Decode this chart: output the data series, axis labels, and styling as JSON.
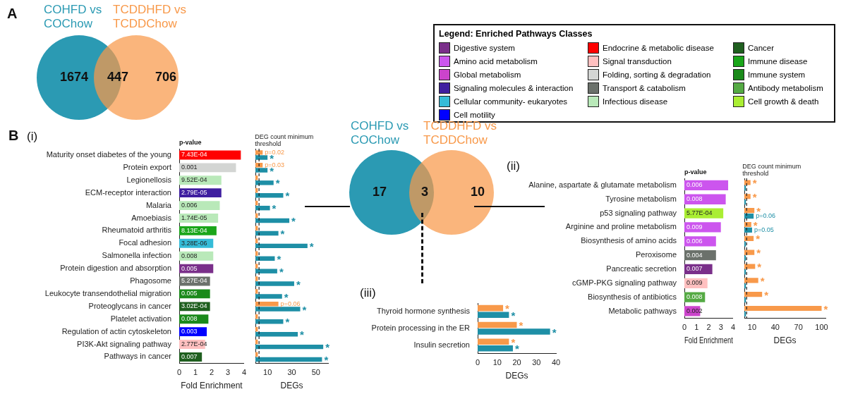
{
  "chart_data": [
    {
      "type": "other",
      "series": [
        {
          "name": "COHFD vs COChow",
          "color": "#2b9ab3"
        },
        {
          "name": "TCDDHFD vs TCDDChow",
          "color": "#f8994a"
        }
      ],
      "annotations": [
        "A",
        "1674",
        "447",
        "706"
      ]
    },
    {
      "type": "other",
      "title": "Legend: Enriched Pathways Classes",
      "categories": [
        "Digestive system",
        "Amino acid metabolism",
        "Global metabolism",
        "Signaling molecules & interaction",
        "Cellular community- eukaryotes",
        "Cell motility",
        "Endocrine & metabolic disease",
        "Signal transduction",
        "Folding, sorting & degradation",
        "Transport & catabolism",
        "Infectious disease",
        "Cancer",
        "Immune disease",
        "Immune system",
        "Antibody metabolism",
        "Cell growth & death"
      ],
      "colors": [
        "#7a2f8a",
        "#cc55ee",
        "#cc44cc",
        "#3f1fa0",
        "#35bcd8",
        "#0000ff",
        "#ff0000",
        "#ffc0c0",
        "#d3d5d3",
        "#6b716b",
        "#b9e9b9",
        "#1f5f1f",
        "#1aa61a",
        "#1a8a1a",
        "#55aa44",
        "#aaee33"
      ]
    },
    {
      "type": "bar",
      "orientation": "horizontal",
      "categories": [
        "Maturity onset diabetes of the young",
        "Protein export",
        "Legionellosis",
        "ECM-receptor interaction",
        "Malaria",
        "Amoebiasis",
        "Rheumatoid arthritis",
        "Focal adhesion",
        "Salmonella infection",
        "Protein digestion and absorption",
        "Phagosome",
        "Leukocyte transendothelial migration",
        "Proteoglycans in cancer",
        "Platelet activation",
        "Regulation of actin cytoskeleton",
        "PI3K-Akt signaling pathway",
        "Pathways in cancer"
      ],
      "values": [
        3.8,
        3.5,
        2.6,
        2.6,
        2.5,
        2.4,
        2.3,
        2.1,
        2.1,
        2.1,
        1.9,
        1.9,
        1.9,
        1.8,
        1.7,
        1.6,
        1.4
      ],
      "colors": [
        "#ff0000",
        "#d3d5d3",
        "#b9e9b9",
        "#3f1fa0",
        "#b9e9b9",
        "#b9e9b9",
        "#1aa61a",
        "#35bcd8",
        "#b9e9b9",
        "#7a2f8a",
        "#6b716b",
        "#1a8a1a",
        "#1f5f1f",
        "#1a8a1a",
        "#0000ff",
        "#ffc0c0",
        "#1f5f1f"
      ],
      "xlim": [
        0,
        4
      ],
      "xticks": [
        0,
        1,
        2,
        3,
        4
      ],
      "xlabel": "Fold Enrichment",
      "annotations": [
        "B",
        "(i)",
        "p-value",
        {
          "text": "7.43E-04",
          "x": 0,
          "y": "Maturity onset diabetes of the young"
        },
        {
          "text": "0.001",
          "x": 0,
          "y": "Protein export"
        },
        {
          "text": "9.52E-04",
          "x": 0,
          "y": "Legionellosis"
        },
        {
          "text": "2.79E-05",
          "x": 0,
          "y": "ECM-receptor interaction"
        },
        {
          "text": "0.006",
          "x": 0,
          "y": "Malaria"
        },
        {
          "text": "1.74E-05",
          "x": 0,
          "y": "Amoebiasis"
        },
        {
          "text": "8.13E-04",
          "x": 0,
          "y": "Rheumatoid arthritis"
        },
        {
          "text": "3.28E-06",
          "x": 0,
          "y": "Focal adhesion"
        },
        {
          "text": "0.008",
          "x": 0,
          "y": "Salmonella infection"
        },
        {
          "text": "0.005",
          "x": 0,
          "y": "Protein digestion and absorption"
        },
        {
          "text": "5.27E-04",
          "x": 0,
          "y": "Phagosome"
        },
        {
          "text": "0.005",
          "x": 0,
          "y": "Leukocyte transendothelial migration"
        },
        {
          "text": "3.02E-04",
          "x": 0,
          "y": "Proteoglycans in cancer"
        },
        {
          "text": "0.008",
          "x": 0,
          "y": "Platelet activation"
        },
        {
          "text": "0.003",
          "x": 0,
          "y": "Regulation of actin cytoskeleton"
        },
        {
          "text": "2.77E-04",
          "x": 0,
          "y": "PI3K-Akt signaling pathway"
        },
        {
          "text": "0.007",
          "x": 0,
          "y": "Pathways in cancer"
        }
      ]
    },
    {
      "type": "bar",
      "orientation": "horizontal",
      "tick_labels": "x",
      "categories": [
        "Maturity onset diabetes of the young",
        "Protein export",
        "Legionellosis",
        "ECM-receptor interaction",
        "Malaria",
        "Amoebiasis",
        "Rheumatoid arthritis",
        "Focal adhesion",
        "Salmonella infection",
        "Protein digestion and absorption",
        "Phagosome",
        "Leukocyte transendothelial migration",
        "Proteoglycans in cancer",
        "Platelet activation",
        "Regulation of actin cytoskeleton",
        "PI3K-Akt signaling pathway",
        "Pathways in cancer"
      ],
      "series": [
        {
          "color": "#f8994a",
          "values": [
            6,
            6,
            2,
            2,
            2,
            2,
            2,
            2,
            2,
            2,
            2,
            2,
            19,
            2,
            2,
            2,
            2
          ]
        },
        {
          "color": "#1e8fa6",
          "values": [
            10,
            10,
            15,
            23,
            12,
            28,
            19,
            43,
            16,
            18,
            32,
            22,
            37,
            23,
            35,
            56,
            55
          ]
        }
      ],
      "xlim": [
        0,
        60
      ],
      "xticks": [
        10,
        30,
        50
      ],
      "xlabel": "DEGs",
      "ref_lines": [
        {
          "axis": "x",
          "value": 3,
          "label": "DEG count minimum threshold",
          "line_style": "dashed"
        }
      ],
      "annotations": [
        {
          "text": "p=0.02",
          "x": 6,
          "y": "Maturity onset diabetes of the young"
        },
        {
          "text": "p=0.03",
          "x": 6,
          "y": "Protein export"
        },
        {
          "text": "p=0.06",
          "x": 19,
          "y": "Proteoglycans in cancer"
        },
        {
          "text": "*",
          "x": 10,
          "y": "Maturity onset diabetes of the young"
        },
        {
          "text": "*",
          "x": 10,
          "y": "Protein export"
        },
        {
          "text": "*",
          "x": 15,
          "y": "Legionellosis"
        },
        {
          "text": "*",
          "x": 23,
          "y": "ECM-receptor interaction"
        },
        {
          "text": "*",
          "x": 12,
          "y": "Malaria"
        },
        {
          "text": "*",
          "x": 28,
          "y": "Amoebiasis"
        },
        {
          "text": "*",
          "x": 19,
          "y": "Rheumatoid arthritis"
        },
        {
          "text": "*",
          "x": 43,
          "y": "Focal adhesion"
        },
        {
          "text": "*",
          "x": 16,
          "y": "Salmonella infection"
        },
        {
          "text": "*",
          "x": 18,
          "y": "Protein digestion and absorption"
        },
        {
          "text": "*",
          "x": 32,
          "y": "Phagosome"
        },
        {
          "text": "*",
          "x": 22,
          "y": "Leukocyte transendothelial migration"
        },
        {
          "text": "*",
          "x": 37,
          "y": "Proteoglycans in cancer"
        },
        {
          "text": "*",
          "x": 23,
          "y": "Platelet activation"
        },
        {
          "text": "*",
          "x": 35,
          "y": "Regulation of actin cytoskeleton"
        },
        {
          "text": "*",
          "x": 56,
          "y": "PI3K-Akt signaling pathway"
        },
        {
          "text": "*",
          "x": 55,
          "y": "Pathways in cancer"
        }
      ]
    },
    {
      "type": "other",
      "series": [
        {
          "name": "COHFD vs COChow",
          "color": "#2b9ab3"
        },
        {
          "name": "TCDDHFD vs TCDDChow",
          "color": "#f8994a"
        }
      ],
      "annotations": [
        "17",
        "3",
        "10"
      ]
    },
    {
      "type": "bar",
      "orientation": "horizontal",
      "categories": [
        "Alanine, aspartate & glutamate metabolism",
        "Tyrosine metabolism",
        "p53 signaling pathway",
        "Arginine and proline metabolism",
        "Biosynthesis of amino acids",
        "Peroxisome",
        "Pancreatic secretion",
        "cGMP-PKG signaling pathway",
        "Biosynthesis of antibiotics",
        "Metabolic pathways"
      ],
      "values": [
        3.6,
        3.4,
        3.2,
        3.0,
        2.6,
        2.6,
        2.3,
        1.9,
        1.7,
        1.3
      ],
      "colors": [
        "#cc55ee",
        "#cc55ee",
        "#aaee33",
        "#cc55ee",
        "#cc55ee",
        "#6b716b",
        "#7a2f8a",
        "#ffc0c0",
        "#55aa44",
        "#cc44cc"
      ],
      "xlim": [
        0,
        4
      ],
      "xticks": [
        0,
        1,
        2,
        3,
        4
      ],
      "xlabel": "Fold Enrichment",
      "annotations": [
        "(ii)",
        "p-value",
        {
          "text": "0.006",
          "x": 0,
          "y": "Alanine, aspartate & glutamate metabolism"
        },
        {
          "text": "0.008",
          "x": 0,
          "y": "Tyrosine metabolism"
        },
        {
          "text": "5.77E-04",
          "x": 0,
          "y": "p53 signaling pathway"
        },
        {
          "text": "0.009",
          "x": 0,
          "y": "Arginine and proline metabolism"
        },
        {
          "text": "0.006",
          "x": 0,
          "y": "Biosynthesis of amino acids"
        },
        {
          "text": "0.004",
          "x": 0,
          "y": "Peroxisome"
        },
        {
          "text": "0.007",
          "x": 0,
          "y": "Pancreatic secretion"
        },
        {
          "text": "0.009",
          "x": 0,
          "y": "cGMP-PKG signaling pathway"
        },
        {
          "text": "0.008",
          "x": 0,
          "y": "Biosynthesis of antibiotics"
        },
        {
          "text": "0.002",
          "x": 0,
          "y": "Metabolic pathways"
        }
      ]
    },
    {
      "type": "bar",
      "orientation": "horizontal",
      "tick_labels": "x",
      "categories": [
        "Alanine, aspartate & glutamate metabolism",
        "Tyrosine metabolism",
        "p53 signaling pathway",
        "Arginine and proline metabolism",
        "Biosynthesis of amino acids",
        "Peroxisome",
        "Pancreatic secretion",
        "cGMP-PKG signaling pathway",
        "Biosynthesis of antibiotics",
        "Metabolic pathways"
      ],
      "series": [
        {
          "color": "#f8994a",
          "values": [
            8,
            8,
            13,
            9,
            12,
            13,
            14,
            18,
            23,
            100
          ]
        },
        {
          "color": "#1e8fa6",
          "values": [
            2,
            2,
            12,
            10,
            2,
            2,
            2,
            2,
            2,
            2
          ]
        }
      ],
      "xlim": [
        0,
        105
      ],
      "xticks": [
        10,
        40,
        70,
        100
      ],
      "xlabel": "DEGs",
      "ref_lines": [
        {
          "axis": "x",
          "value": 3,
          "label": "DEG count minimum threshold",
          "line_style": "dashed"
        }
      ],
      "annotations": [
        {
          "text": "*",
          "x": 8,
          "y": "Alanine, aspartate & glutamate metabolism"
        },
        {
          "text": "*",
          "x": 8,
          "y": "Tyrosine metabolism"
        },
        {
          "text": "*",
          "x": 13,
          "y": "p53 signaling pathway"
        },
        {
          "text": "*",
          "x": 9,
          "y": "Arginine and proline metabolism"
        },
        {
          "text": "*",
          "x": 12,
          "y": "Biosynthesis of amino acids"
        },
        {
          "text": "*",
          "x": 13,
          "y": "Peroxisome"
        },
        {
          "text": "*",
          "x": 14,
          "y": "Pancreatic secretion"
        },
        {
          "text": "*",
          "x": 18,
          "y": "cGMP-PKG signaling pathway"
        },
        {
          "text": "*",
          "x": 23,
          "y": "Biosynthesis of antibiotics"
        },
        {
          "text": "*",
          "x": 100,
          "y": "Metabolic pathways"
        },
        {
          "text": "p=0.06",
          "x": 12,
          "y": "p53 signaling pathway"
        },
        {
          "text": "p=0.05",
          "x": 10,
          "y": "Arginine and proline metabolism"
        }
      ]
    },
    {
      "type": "bar",
      "orientation": "horizontal",
      "categories": [
        "Thyroid hormone synthesis",
        "Protein processing in the ER",
        "Insulin secretion"
      ],
      "series": [
        {
          "color": "#f8994a",
          "values": [
            13,
            20,
            16
          ]
        },
        {
          "color": "#1e8fa6",
          "values": [
            16,
            37,
            18
          ]
        }
      ],
      "xlim": [
        0,
        40
      ],
      "xticks": [
        0,
        10,
        20,
        30,
        40
      ],
      "xlabel": "DEGs",
      "annotations": [
        "(iii)",
        {
          "text": "*",
          "x": 13,
          "y": "Thyroid hormone synthesis"
        },
        {
          "text": "*",
          "x": 16,
          "y": "Thyroid hormone synthesis"
        },
        {
          "text": "*",
          "x": 20,
          "y": "Protein processing in the ER"
        },
        {
          "text": "*",
          "x": 37,
          "y": "Protein processing in the ER"
        },
        {
          "text": "*",
          "x": 16,
          "y": "Insulin secretion"
        },
        {
          "text": "*",
          "x": 18,
          "y": "Insulin secretion"
        }
      ]
    }
  ]
}
